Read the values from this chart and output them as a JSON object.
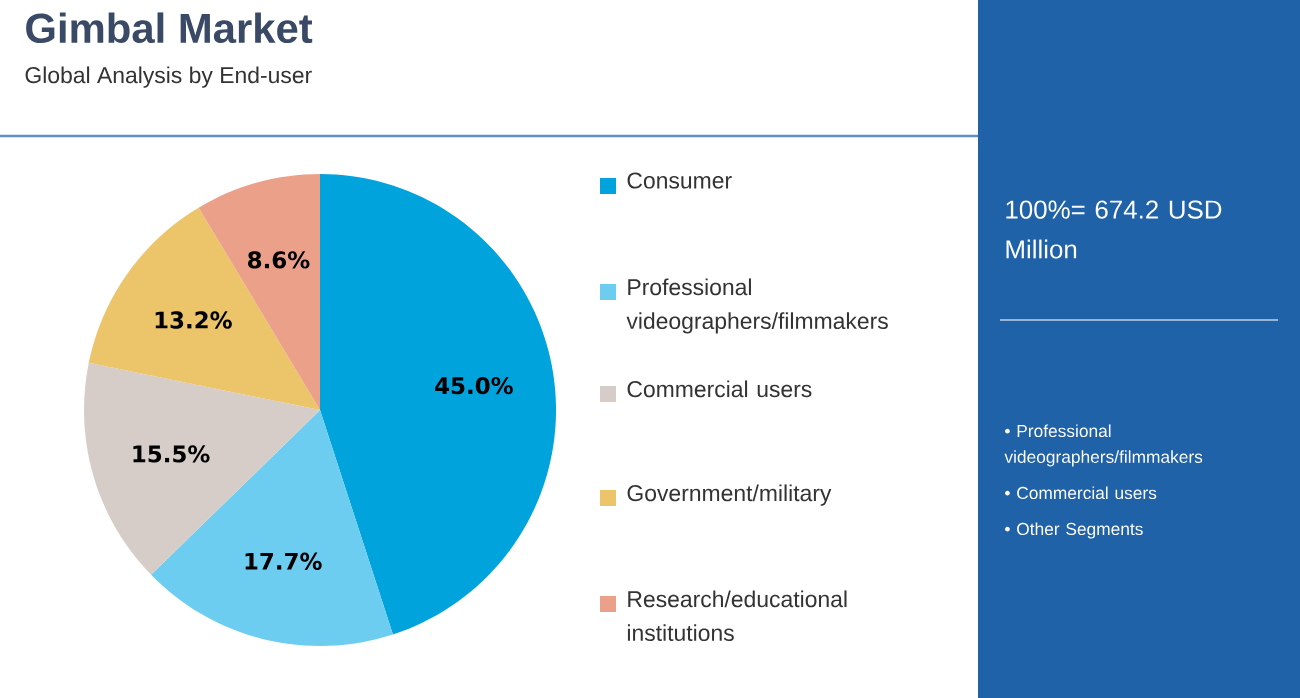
{
  "chart_data": {
    "type": "pie",
    "title": "Gimbal Market",
    "subtitle": "Global Analysis by End-user",
    "categories": [
      "Consumer",
      "Professional videographers/filmmakers",
      "Commercial users",
      "Government/military",
      "Research/educational institutions"
    ],
    "values": [
      45.0,
      17.7,
      15.5,
      13.2,
      8.6
    ],
    "colors": [
      "#00a3dc",
      "#6dcdf0",
      "#d7cdc8",
      "#ecc46a",
      "#eba08a"
    ],
    "value_labels": [
      "45.0%",
      "17.7%",
      "15.5%",
      "13.2%",
      "8.6%"
    ],
    "legend": "right",
    "annotations": [
      "100%= 674.2 USD Million",
      "• Professional videographers/filmmakers",
      "• Commercial users",
      "• Other Segments"
    ]
  }
}
